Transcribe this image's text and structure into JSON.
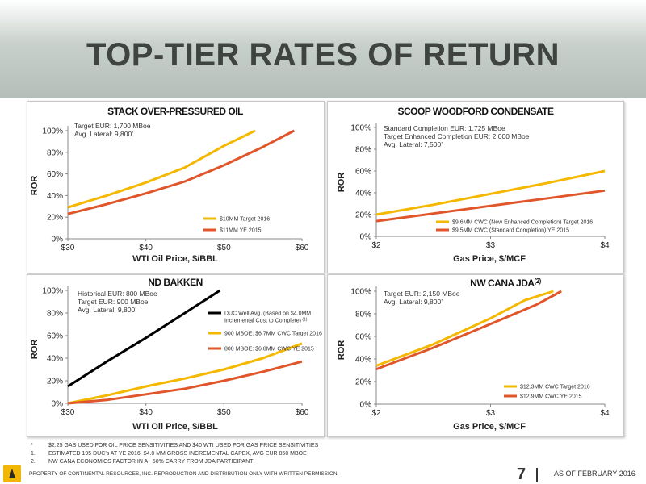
{
  "page": {
    "title": "TOP-TIER RATES OF RETURN",
    "footnotes": [
      {
        "marker": "*",
        "text": "$2.25 GAS USED FOR OIL PRICE SENSITIVITIES AND $40 WTI USED FOR GAS PRICE SENSITIVITIES"
      },
      {
        "marker": "1.",
        "text": "ESTIMATED 195 DUC’s AT YE 2016, $4.0 MM GROSS INCREMENTAL CAPEX, AVG EUR 850 MBOE"
      },
      {
        "marker": "2.",
        "text": "NW CANA ECONOMICS FACTOR IN A ~50% CARRY FROM JDA PARTICIPANT"
      }
    ],
    "property_notice": "PROPERTY OF CONTINENTAL RESOURCES, INC. REPRODUCTION AND DISTRIBUTION ONLY WITH WRITTEN PERMISSION",
    "page_number": "7",
    "as_of": "AS OF FEBRUARY 2016",
    "colors": {
      "yellow": "#f5b800",
      "orange": "#e0562a",
      "black": "#000000",
      "title": "#3f4440"
    }
  },
  "chart_data": [
    {
      "id": "stack",
      "type": "line",
      "title": "STACK OVER-PRESSURED OIL",
      "title_sup": "",
      "xlabel": "WTI Oil Price, $/BBL",
      "ylabel": "ROR",
      "xlim": [
        30,
        60
      ],
      "ylim": [
        0,
        100
      ],
      "xticks": [
        30,
        40,
        50,
        60
      ],
      "xtick_labels": [
        "$30",
        "$40",
        "$50",
        "$60"
      ],
      "yticks": [
        0,
        20,
        40,
        60,
        80,
        100
      ],
      "ytick_labels": [
        "0%",
        "20%",
        "40%",
        "60%",
        "80%",
        "100%"
      ],
      "annotations": [
        "Target EUR: 1,700 MBoe",
        "Avg. Lateral: 9,800’"
      ],
      "legend_position": "bottom-right",
      "series": [
        {
          "name": "$10MM Target 2016",
          "color": "#f5b800",
          "x": [
            30,
            35,
            40,
            45,
            50,
            54
          ],
          "y": [
            29,
            40,
            52,
            66,
            86,
            100
          ]
        },
        {
          "name": "$11MM YE 2015",
          "color": "#e0562a",
          "x": [
            30,
            35,
            40,
            45,
            50,
            55,
            59
          ],
          "y": [
            23,
            32,
            42,
            53,
            68,
            85,
            100
          ]
        }
      ]
    },
    {
      "id": "scoop",
      "type": "line",
      "title": "SCOOP WOODFORD CONDENSATE",
      "title_sup": "",
      "xlabel": "Gas Price, $/MCF",
      "ylabel": "ROR",
      "xlim": [
        2,
        4
      ],
      "ylim": [
        0,
        100
      ],
      "xticks": [
        2,
        3,
        4
      ],
      "xtick_labels": [
        "$2",
        "$3",
        "$4"
      ],
      "yticks": [
        0,
        20,
        40,
        60,
        80,
        100
      ],
      "ytick_labels": [
        "0%",
        "20%",
        "40%",
        "60%",
        "80%",
        "100%"
      ],
      "annotations": [
        "Standard Completion EUR: 1,725 MBoe",
        "Target Enhanced Completion EUR: 2,000 MBoe",
        "Avg. Lateral: 7,500’"
      ],
      "legend_position": "bottom-right",
      "series": [
        {
          "name": "$9.6MM CWC (New Enhanced Completion) Target 2016",
          "color": "#f5b800",
          "x": [
            2,
            2.5,
            3,
            3.5,
            4
          ],
          "y": [
            20,
            29,
            39,
            49,
            60
          ]
        },
        {
          "name": "$9.5MM CWC (Standard Completion) YE 2015",
          "color": "#e0562a",
          "x": [
            2,
            2.5,
            3,
            3.5,
            4
          ],
          "y": [
            14,
            21,
            28,
            35,
            42
          ]
        }
      ]
    },
    {
      "id": "bakken",
      "type": "line",
      "title": "ND BAKKEN",
      "title_sup": "",
      "xlabel": "WTI Oil Price, $/BBL",
      "ylabel": "ROR",
      "xlim": [
        30,
        60
      ],
      "ylim": [
        0,
        100
      ],
      "xticks": [
        30,
        40,
        50,
        60
      ],
      "xtick_labels": [
        "$30",
        "$40",
        "$50",
        "$60"
      ],
      "yticks": [
        0,
        20,
        40,
        60,
        80,
        100
      ],
      "ytick_labels": [
        "0%",
        "20%",
        "40%",
        "60%",
        "80%",
        "100%"
      ],
      "annotations": [
        "Historical EUR: 800 MBoe",
        "Target EUR: 900 MBoe",
        "Avg. Lateral: 9,800’"
      ],
      "legend_position": "center-right",
      "series": [
        {
          "name": "DUC Well Avg. (Based on $4.0MM Incremental Cost to Complete)",
          "name_sup": "(1)",
          "color": "#000000",
          "x": [
            30,
            35,
            40,
            45,
            49.5
          ],
          "y": [
            15,
            37,
            58,
            80,
            100
          ]
        },
        {
          "name": "900 MBOE: $6.7MM CWC Target 2016",
          "color": "#f5b800",
          "x": [
            30,
            35,
            40,
            45,
            50,
            55,
            60
          ],
          "y": [
            0,
            7,
            15,
            22,
            30,
            40,
            53
          ]
        },
        {
          "name": "800 MBOE: $6.8MM CWC YE 2015",
          "color": "#e0562a",
          "x": [
            30,
            35,
            40,
            45,
            50,
            55,
            60
          ],
          "y": [
            0,
            3,
            8,
            13,
            20,
            28,
            37
          ]
        }
      ]
    },
    {
      "id": "nwcana",
      "type": "line",
      "title": "NW CANA JDA",
      "title_sup": "(2)",
      "xlabel": "Gas Price, $/MCF",
      "ylabel": "ROR",
      "xlim": [
        2,
        4
      ],
      "ylim": [
        0,
        100
      ],
      "xticks": [
        2,
        3,
        4
      ],
      "xtick_labels": [
        "$2",
        "$3",
        "$4"
      ],
      "yticks": [
        0,
        20,
        40,
        60,
        80,
        100
      ],
      "ytick_labels": [
        "0%",
        "20%",
        "40%",
        "60%",
        "80%",
        "100%"
      ],
      "annotations": [
        "Target EUR: 2,150 MBoe",
        "Avg. Lateral: 9,800’"
      ],
      "legend_position": "bottom-right",
      "series": [
        {
          "name": "$12.3MM CWC Target 2016",
          "color": "#f5b800",
          "x": [
            2,
            2.5,
            3,
            3.3,
            3.55
          ],
          "y": [
            34,
            53,
            76,
            92,
            100
          ]
        },
        {
          "name": "$12.9MM CWC YE 2015",
          "color": "#e0562a",
          "x": [
            2,
            2.5,
            3,
            3.4,
            3.62
          ],
          "y": [
            31,
            50,
            71,
            88,
            100
          ]
        }
      ]
    }
  ]
}
